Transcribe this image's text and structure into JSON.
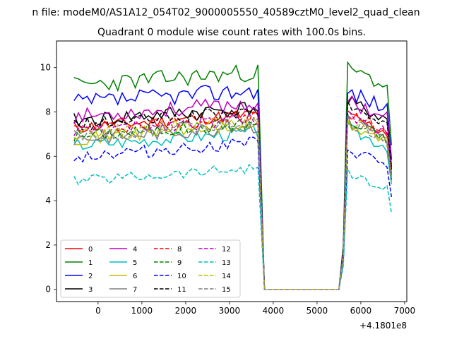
{
  "chart_data": {
    "type": "line",
    "suptitle": "n file: modeM0/AS1A12_054T02_9000005550_40589cztM0_level2_quad_clean",
    "title": "Quadrant 0 module wise count rates with 100.0s bins.",
    "xlabel": "",
    "ylabel": "",
    "x_offset_label": "+4.1801e8",
    "xlim": [
      -950,
      7050
    ],
    "ylim": [
      -0.55,
      11.2
    ],
    "xticks": [
      0,
      1000,
      2000,
      3000,
      4000,
      5000,
      6000,
      7000
    ],
    "xtick_labels": [
      "0",
      "1000",
      "2000",
      "3000",
      "4000",
      "5000",
      "6000",
      "7000"
    ],
    "yticks": [
      0,
      2,
      4,
      6,
      8,
      10
    ],
    "ytick_labels": [
      "0",
      "2",
      "4",
      "6",
      "8",
      "10"
    ],
    "grid": false,
    "legend_position": "lower-left",
    "legend_columns": 4,
    "segments": [
      {
        "x_start": -550,
        "x_end": 3650,
        "step": 100
      },
      {
        "x_start": 3800,
        "x_end": 5500,
        "step": 100
      },
      {
        "x_start": 5600,
        "x_end": 6700,
        "step": 100
      }
    ],
    "gap_x": [
      3700
    ],
    "series": [
      {
        "name": "0",
        "color": "#ff0000",
        "dash": "solid",
        "level1": 7.3,
        "level2": 7.9,
        "jitter": 0.3,
        "seed": 11
      },
      {
        "name": "1",
        "color": "#008000",
        "dash": "solid",
        "level1": 9.2,
        "level2": 10.0,
        "jitter": 0.4,
        "seed": 23
      },
      {
        "name": "2",
        "color": "#0000ff",
        "dash": "solid",
        "level1": 8.4,
        "level2": 9.0,
        "jitter": 0.4,
        "seed": 37
      },
      {
        "name": "3",
        "color": "#000000",
        "dash": "solid",
        "level1": 7.6,
        "level2": 8.5,
        "jitter": 0.35,
        "seed": 41
      },
      {
        "name": "4",
        "color": "#bf00bf",
        "dash": "solid",
        "level1": 7.8,
        "level2": 8.6,
        "jitter": 0.35,
        "seed": 53
      },
      {
        "name": "5",
        "color": "#00bfbf",
        "dash": "solid",
        "level1": 6.5,
        "level2": 7.3,
        "jitter": 0.3,
        "seed": 67
      },
      {
        "name": "6",
        "color": "#bfbf00",
        "dash": "solid",
        "level1": 6.8,
        "level2": 7.5,
        "jitter": 0.3,
        "seed": 71
      },
      {
        "name": "7",
        "color": "#808080",
        "dash": "solid",
        "level1": 6.8,
        "level2": 7.7,
        "jitter": 0.35,
        "seed": 83
      },
      {
        "name": "8",
        "color": "#ff0000",
        "dash": "dashed",
        "level1": 7.2,
        "level2": 8.0,
        "jitter": 0.3,
        "seed": 97
      },
      {
        "name": "9",
        "color": "#008000",
        "dash": "dashed",
        "level1": 6.9,
        "level2": 7.6,
        "jitter": 0.3,
        "seed": 101
      },
      {
        "name": "10",
        "color": "#0000ff",
        "dash": "dashed",
        "level1": 6.0,
        "level2": 6.4,
        "jitter": 0.3,
        "seed": 113
      },
      {
        "name": "11",
        "color": "#000000",
        "dash": "dashed",
        "level1": 7.4,
        "level2": 8.3,
        "jitter": 0.3,
        "seed": 127
      },
      {
        "name": "12",
        "color": "#bf00bf",
        "dash": "dashed",
        "level1": 7.1,
        "level2": 7.9,
        "jitter": 0.3,
        "seed": 131
      },
      {
        "name": "13",
        "color": "#00bfbf",
        "dash": "dashed",
        "level1": 4.9,
        "level2": 5.3,
        "jitter": 0.25,
        "seed": 139
      },
      {
        "name": "14",
        "color": "#bfbf00",
        "dash": "dashed",
        "level1": 7.0,
        "level2": 7.7,
        "jitter": 0.3,
        "seed": 149
      },
      {
        "name": "15",
        "color": "#808080",
        "dash": "dashed",
        "level1": 6.9,
        "level2": 7.6,
        "jitter": 0.3,
        "seed": 151
      }
    ]
  }
}
